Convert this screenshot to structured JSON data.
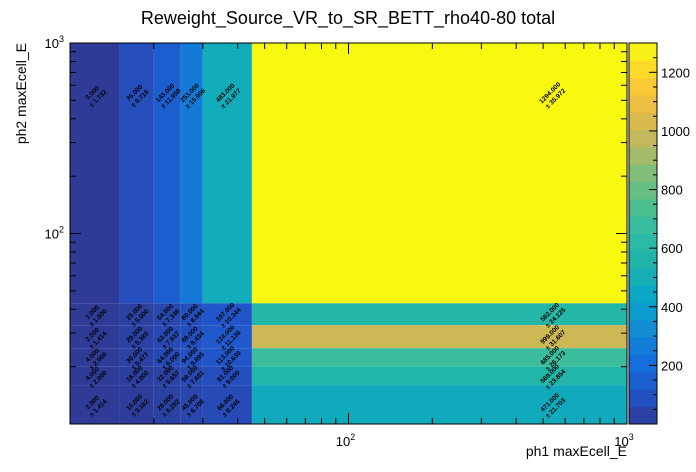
{
  "chart_data": {
    "type": "heatmap",
    "title": "Reweight_Source_VR_to_SR_BETT_rho40-80 total",
    "xlabel": "ph1 maxEcell_E",
    "ylabel": "ph2 maxEcell_E",
    "xscale": "log",
    "yscale": "log",
    "xlim": [
      10,
      1000
    ],
    "ylim": [
      10,
      1000
    ],
    "x_tick_labels": [
      {
        "value": 100,
        "base": "10",
        "exp": "2"
      },
      {
        "value": 1000,
        "base": "10",
        "exp": "3"
      }
    ],
    "y_tick_labels": [
      {
        "value": 100,
        "base": "10",
        "exp": "2"
      },
      {
        "value": 1000,
        "base": "10",
        "exp": "3"
      }
    ],
    "x_bin_edges": [
      10,
      15,
      20,
      25,
      30,
      45,
      1000
    ],
    "y_bin_edges": [
      10,
      16,
      20,
      25,
      33,
      43,
      1000
    ],
    "colorbar": {
      "min": 0,
      "max": 1300,
      "ticks": [
        "200",
        "400",
        "600",
        "800",
        "1000",
        "1200"
      ]
    },
    "cells": [
      {
        "x": 0,
        "y": 5,
        "value": 3.0,
        "label": "3.000",
        "error": "± 1.732"
      },
      {
        "x": 1,
        "y": 5,
        "value": 76.0,
        "label": "76.000",
        "error": "± 8.718"
      },
      {
        "x": 2,
        "y": 5,
        "value": 143.0,
        "label": "143.000",
        "error": "± 11.958"
      },
      {
        "x": 3,
        "y": 5,
        "value": 253.0,
        "label": "253.000",
        "error": "± 15.906"
      },
      {
        "x": 4,
        "y": 5,
        "value": 483.0,
        "label": "483.000",
        "error": "± 21.977"
      },
      {
        "x": 5,
        "y": 5,
        "value": 1294.0,
        "label": "1294.000",
        "error": "± 35.972"
      },
      {
        "x": 0,
        "y": 4,
        "value": 1.0,
        "label": "1.000",
        "error": "± 1.000"
      },
      {
        "x": 1,
        "y": 4,
        "value": 25.0,
        "label": "25.000",
        "error": "± 5.000"
      },
      {
        "x": 2,
        "y": 4,
        "value": 54.0,
        "label": "54.000",
        "error": "± 7.348"
      },
      {
        "x": 3,
        "y": 4,
        "value": 80.0,
        "label": "80.000",
        "error": "± 8.944"
      },
      {
        "x": 4,
        "y": 4,
        "value": 107.0,
        "label": "107.000",
        "error": "± 10.344"
      },
      {
        "x": 5,
        "y": 4,
        "value": 582.0,
        "label": "582.000",
        "error": "± 24.125"
      },
      {
        "x": 0,
        "y": 3,
        "value": 2.0,
        "label": "2.000",
        "error": "± 1.414"
      },
      {
        "x": 1,
        "y": 3,
        "value": 29.0,
        "label": "29.000",
        "error": "± 5.385"
      },
      {
        "x": 2,
        "y": 3,
        "value": 63.0,
        "label": "63.000",
        "error": "± 7.937"
      },
      {
        "x": 3,
        "y": 3,
        "value": 89.0,
        "label": "89.000",
        "error": "± 9.434"
      },
      {
        "x": 4,
        "y": 3,
        "value": 124.0,
        "label": "124.000",
        "error": "± 11.136"
      },
      {
        "x": 5,
        "y": 3,
        "value": 999.0,
        "label": "999.000",
        "error": "± 31.607"
      },
      {
        "x": 0,
        "y": 2,
        "value": 4.0,
        "label": "4.000",
        "error": "± 2.000"
      },
      {
        "x": 1,
        "y": 2,
        "value": 30.0,
        "label": "30.000",
        "error": "± 5.477"
      },
      {
        "x": 2,
        "y": 2,
        "value": 64.0,
        "label": "64.000",
        "error": "± 8.000"
      },
      {
        "x": 3,
        "y": 2,
        "value": 94.0,
        "label": "94.000",
        "error": "± 9.695"
      },
      {
        "x": 4,
        "y": 2,
        "value": 113.0,
        "label": "113.000",
        "error": "± 10.630"
      },
      {
        "x": 5,
        "y": 2,
        "value": 685.0,
        "label": "685.000",
        "error": "± 26.173"
      },
      {
        "x": 0,
        "y": 1,
        "value": 4.0,
        "label": "4.000",
        "error": "± 2.000"
      },
      {
        "x": 1,
        "y": 1,
        "value": 16.0,
        "label": "16.000",
        "error": "± 4.000"
      },
      {
        "x": 2,
        "y": 1,
        "value": 32.0,
        "label": "32.000",
        "error": "± 5.657"
      },
      {
        "x": 3,
        "y": 1,
        "value": 59.0,
        "label": "59.000",
        "error": "± 7.681"
      },
      {
        "x": 4,
        "y": 1,
        "value": 81.0,
        "label": "81.000",
        "error": "± 9.000"
      },
      {
        "x": 5,
        "y": 1,
        "value": 569.0,
        "label": "569.000",
        "error": "± 23.854"
      },
      {
        "x": 0,
        "y": 0,
        "value": 2.0,
        "label": "2.000",
        "error": "± 1.414"
      },
      {
        "x": 1,
        "y": 0,
        "value": 10.0,
        "label": "10.000",
        "error": "± 3.162"
      },
      {
        "x": 2,
        "y": 0,
        "value": 28.0,
        "label": "28.000",
        "error": "± 5.292"
      },
      {
        "x": 3,
        "y": 0,
        "value": 45.0,
        "label": "45.000",
        "error": "± 6.708"
      },
      {
        "x": 4,
        "y": 0,
        "value": 68.0,
        "label": "68.000",
        "error": "± 8.246"
      },
      {
        "x": 5,
        "y": 0,
        "value": 471.0,
        "label": "471.000",
        "error": "± 21.703"
      }
    ],
    "grid": false,
    "legend": "colorbar-right"
  }
}
